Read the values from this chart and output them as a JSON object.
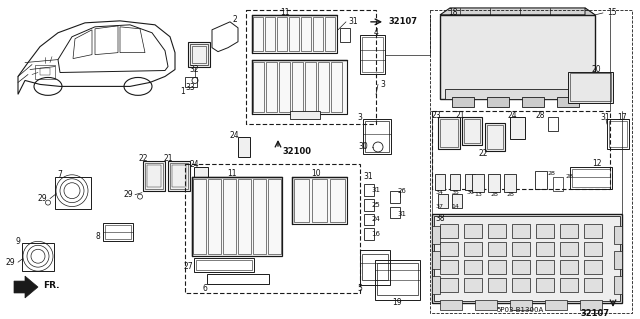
{
  "bg_color": "#ffffff",
  "fig_width": 6.4,
  "fig_height": 3.19,
  "line_color": "#1a1a1a",
  "text_color": "#111111",
  "diagram_code": "5P03-B1300A"
}
